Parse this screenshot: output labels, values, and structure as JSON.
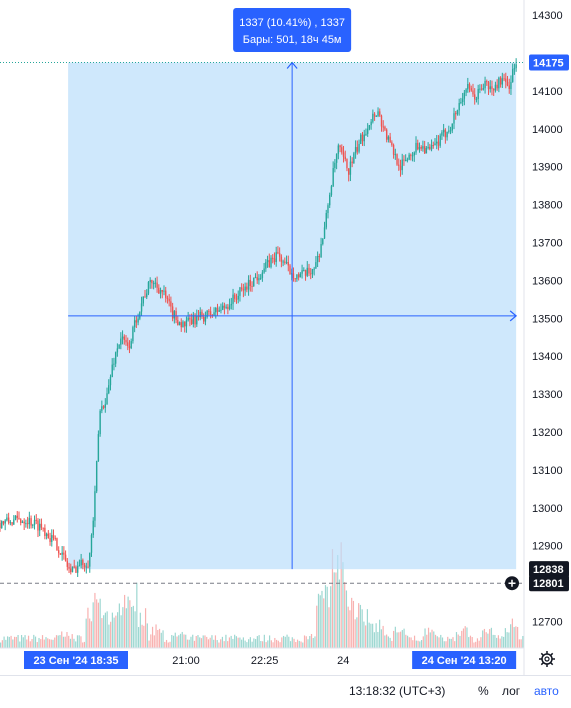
{
  "chart_data": {
    "type": "candlestick",
    "ylim": [
      12630,
      14340
    ],
    "y_ticks": [
      12700,
      12800,
      12900,
      13000,
      13100,
      13200,
      13300,
      13400,
      13500,
      13600,
      13700,
      13800,
      13900,
      14000,
      14100,
      14300
    ],
    "x_tick_labels": [
      {
        "label": "21:00",
        "frac": 0.355
      },
      {
        "label": "22:25",
        "frac": 0.505
      },
      {
        "label": "24",
        "frac": 0.655
      }
    ],
    "x_badges": [
      {
        "label": "23 Сен '24   18:35",
        "frac": 0.145
      },
      {
        "label": "24 Сен '24   13:20",
        "frac": 0.985
      }
    ],
    "price_path": [
      [
        0.0,
        12960
      ],
      [
        0.05,
        12970
      ],
      [
        0.08,
        12950
      ],
      [
        0.11,
        12900
      ],
      [
        0.135,
        12830
      ],
      [
        0.15,
        12850
      ],
      [
        0.17,
        12860
      ],
      [
        0.18,
        13000
      ],
      [
        0.19,
        13250
      ],
      [
        0.205,
        13300
      ],
      [
        0.215,
        13380
      ],
      [
        0.23,
        13450
      ],
      [
        0.245,
        13420
      ],
      [
        0.26,
        13500
      ],
      [
        0.275,
        13560
      ],
      [
        0.29,
        13600
      ],
      [
        0.31,
        13570
      ],
      [
        0.33,
        13510
      ],
      [
        0.35,
        13480
      ],
      [
        0.375,
        13500
      ],
      [
        0.4,
        13510
      ],
      [
        0.43,
        13530
      ],
      [
        0.46,
        13570
      ],
      [
        0.49,
        13610
      ],
      [
        0.51,
        13640
      ],
      [
        0.53,
        13670
      ],
      [
        0.55,
        13630
      ],
      [
        0.57,
        13610
      ],
      [
        0.59,
        13620
      ],
      [
        0.605,
        13650
      ],
      [
        0.62,
        13740
      ],
      [
        0.63,
        13840
      ],
      [
        0.645,
        13950
      ],
      [
        0.665,
        13890
      ],
      [
        0.685,
        13960
      ],
      [
        0.705,
        14020
      ],
      [
        0.72,
        14050
      ],
      [
        0.735,
        13990
      ],
      [
        0.75,
        13940
      ],
      [
        0.765,
        13900
      ],
      [
        0.78,
        13930
      ],
      [
        0.8,
        13960
      ],
      [
        0.82,
        13940
      ],
      [
        0.84,
        13970
      ],
      [
        0.86,
        14010
      ],
      [
        0.875,
        14060
      ],
      [
        0.89,
        14110
      ],
      [
        0.905,
        14080
      ],
      [
        0.925,
        14120
      ],
      [
        0.94,
        14100
      ],
      [
        0.955,
        14130
      ],
      [
        0.97,
        14110
      ],
      [
        0.985,
        14175
      ]
    ],
    "volume_peaks": [
      {
        "frac": 0.125,
        "rel": 0.25
      },
      {
        "frac": 0.175,
        "rel": 0.7
      },
      {
        "frac": 0.19,
        "rel": 0.85
      },
      {
        "frac": 0.21,
        "rel": 0.55
      },
      {
        "frac": 0.235,
        "rel": 0.8
      },
      {
        "frac": 0.25,
        "rel": 1.0
      },
      {
        "frac": 0.27,
        "rel": 0.6
      },
      {
        "frac": 0.3,
        "rel": 0.35
      },
      {
        "frac": 0.34,
        "rel": 0.25
      },
      {
        "frac": 0.45,
        "rel": 0.2
      },
      {
        "frac": 0.55,
        "rel": 0.18
      },
      {
        "frac": 0.6,
        "rel": 0.25
      },
      {
        "frac": 0.615,
        "rel": 0.85
      },
      {
        "frac": 0.63,
        "rel": 1.0
      },
      {
        "frac": 0.645,
        "rel": 1.6
      },
      {
        "frac": 0.66,
        "rel": 0.9
      },
      {
        "frac": 0.675,
        "rel": 0.75
      },
      {
        "frac": 0.695,
        "rel": 0.6
      },
      {
        "frac": 0.72,
        "rel": 0.45
      },
      {
        "frac": 0.76,
        "rel": 0.35
      },
      {
        "frac": 0.82,
        "rel": 0.3
      },
      {
        "frac": 0.88,
        "rel": 0.35
      },
      {
        "frac": 0.93,
        "rel": 0.3
      },
      {
        "frac": 0.975,
        "rel": 0.45
      }
    ],
    "measure": {
      "from_price": 12838,
      "to_price": 14175,
      "line_1": "1337 (10.41%) , 1337",
      "line_2": "Бары: 501, 18ч 45м"
    },
    "price_badges": [
      {
        "value": 14175,
        "label": "14175",
        "color": "#2962ff"
      },
      {
        "value": 12838,
        "label": "12838",
        "color": "#131722"
      },
      {
        "value": 12801,
        "label": "12801",
        "color": "#131722"
      }
    ],
    "colors": {
      "up": "#26a69a",
      "down": "#ef5350",
      "selection_fill": "#bbdefb",
      "accent": "#2962ff",
      "axis_text": "#131722"
    }
  },
  "bottom_bar": {
    "time": "13:18:32 (UTC+3)",
    "percent": "%",
    "log": "лог",
    "auto": "авто"
  },
  "icons": {
    "settings": "gear-icon",
    "add": "plus-circle-icon"
  }
}
